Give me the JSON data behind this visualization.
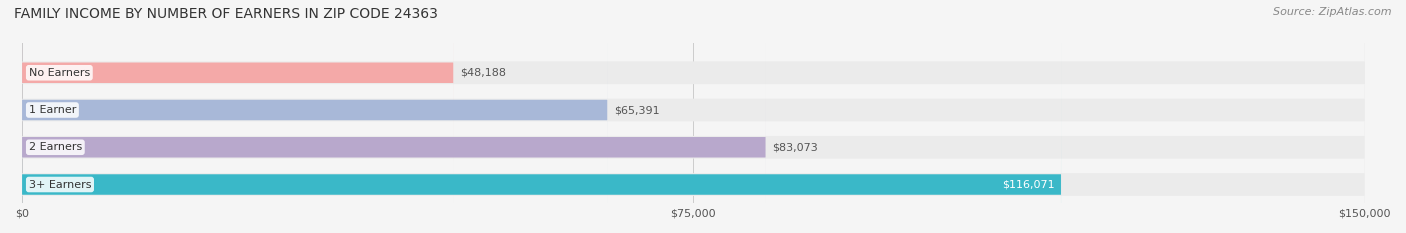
{
  "title": "FAMILY INCOME BY NUMBER OF EARNERS IN ZIP CODE 24363",
  "source": "Source: ZipAtlas.com",
  "categories": [
    "No Earners",
    "1 Earner",
    "2 Earners",
    "3+ Earners"
  ],
  "values": [
    48188,
    65391,
    83073,
    116071
  ],
  "bar_colors": [
    "#f4a9a8",
    "#a8b8d8",
    "#b8a8cc",
    "#3ab8c8"
  ],
  "bar_label_colors": [
    "#555555",
    "#555555",
    "#555555",
    "#ffffff"
  ],
  "label_bg_color": "#ffffff",
  "track_color": "#ebebeb",
  "xlim": [
    0,
    150000
  ],
  "xtick_values": [
    0,
    75000,
    150000
  ],
  "xtick_labels": [
    "$0",
    "$75,000",
    "$150,000"
  ],
  "bar_height": 0.55,
  "figsize": [
    14.06,
    2.33
  ],
  "dpi": 100,
  "title_fontsize": 10,
  "label_fontsize": 8,
  "value_fontsize": 8,
  "source_fontsize": 8
}
